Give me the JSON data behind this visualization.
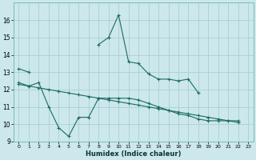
{
  "xlabel": "Humidex (Indice chaleur)",
  "bg_color": "#cce8ec",
  "grid_color": "#aacfd4",
  "line_color": "#1a6b60",
  "x_ticks": [
    0,
    1,
    2,
    3,
    4,
    5,
    6,
    7,
    8,
    9,
    10,
    11,
    12,
    13,
    14,
    15,
    16,
    17,
    18,
    19,
    20,
    21,
    22,
    23
  ],
  "ylim": [
    9,
    17
  ],
  "yticks": [
    9,
    10,
    11,
    12,
    13,
    14,
    15,
    16
  ],
  "series1_y": [
    13.2,
    13.0,
    null,
    null,
    null,
    null,
    null,
    null,
    14.6,
    15.0,
    16.3,
    13.6,
    13.5,
    12.9,
    12.6,
    12.6,
    12.5,
    12.6,
    11.8,
    null,
    null,
    null,
    null,
    null
  ],
  "series2_y": [
    12.4,
    12.2,
    12.4,
    11.0,
    9.8,
    9.3,
    10.4,
    10.4,
    11.5,
    11.5,
    11.5,
    11.5,
    11.4,
    11.2,
    11.0,
    10.8,
    10.6,
    10.5,
    10.3,
    10.2,
    10.2,
    10.2,
    10.1,
    null
  ],
  "series3_y": [
    12.3,
    12.2,
    12.1,
    12.0,
    11.9,
    11.8,
    11.7,
    11.6,
    11.5,
    11.4,
    11.3,
    11.2,
    11.1,
    11.0,
    10.9,
    10.8,
    10.7,
    10.6,
    10.5,
    10.4,
    10.3,
    10.2,
    10.2,
    null
  ]
}
